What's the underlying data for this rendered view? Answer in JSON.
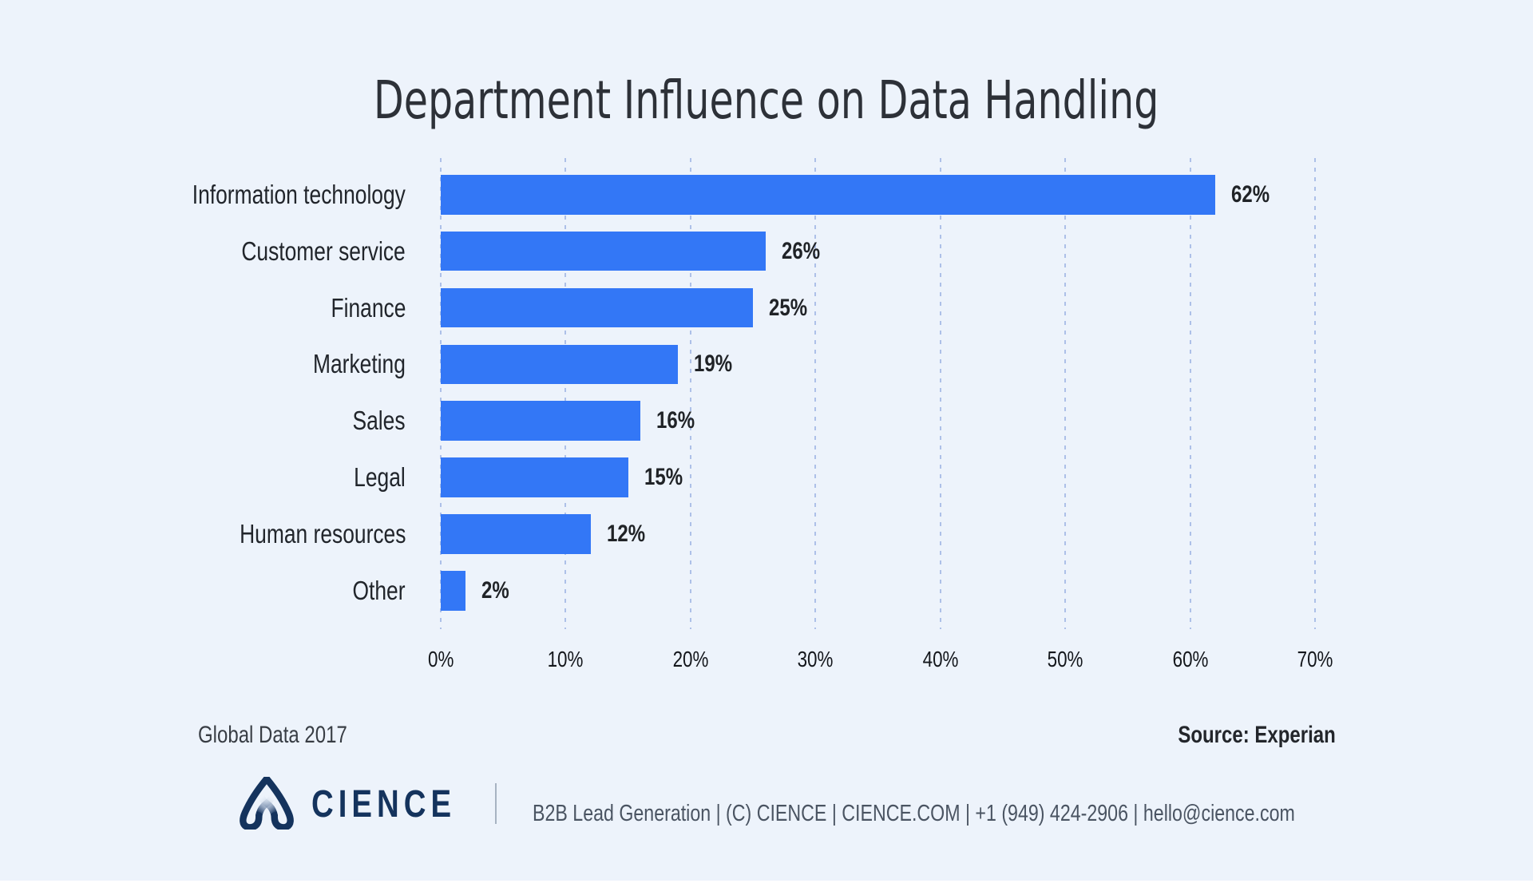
{
  "title": "Department Influence on Data Handling",
  "chart_data": {
    "type": "bar",
    "orientation": "horizontal",
    "categories": [
      "Information technology",
      "Customer service",
      "Finance",
      "Marketing",
      "Sales",
      "Legal",
      "Human resources",
      "Other"
    ],
    "values": [
      62,
      26,
      25,
      19,
      16,
      15,
      12,
      2
    ],
    "value_labels": [
      "62%",
      "26%",
      "25%",
      "19%",
      "16%",
      "15%",
      "12%",
      "2%"
    ],
    "xlim": [
      0,
      70
    ],
    "x_tick_labels": [
      "0%",
      "10%",
      "20%",
      "30%",
      "40%",
      "50%",
      "60%",
      "70%"
    ],
    "grid": "dashed-vertical",
    "legend": "none"
  },
  "footer": {
    "left_note": "Global Data 2017",
    "source": "Source: Experian"
  },
  "brand": {
    "wordmark": "CIENCE",
    "info_line": "B2B Lead Generation | (C) CIENCE | CIENCE.COM | +1 (949) 424-2906 | hello@cience.com"
  },
  "colors": {
    "background": "#edf3fb",
    "bar": "#3377f6",
    "gridline": "#adc0e8",
    "title_text": "#2d3138",
    "category_text": "#21252b",
    "value_text": "#202327",
    "tick_text": "#14171c",
    "foot_left_text": "#383d44",
    "source_text": "#23262b",
    "navy": "#14335d",
    "info_text": "#4a5462",
    "separator": "#a7b3c2"
  }
}
